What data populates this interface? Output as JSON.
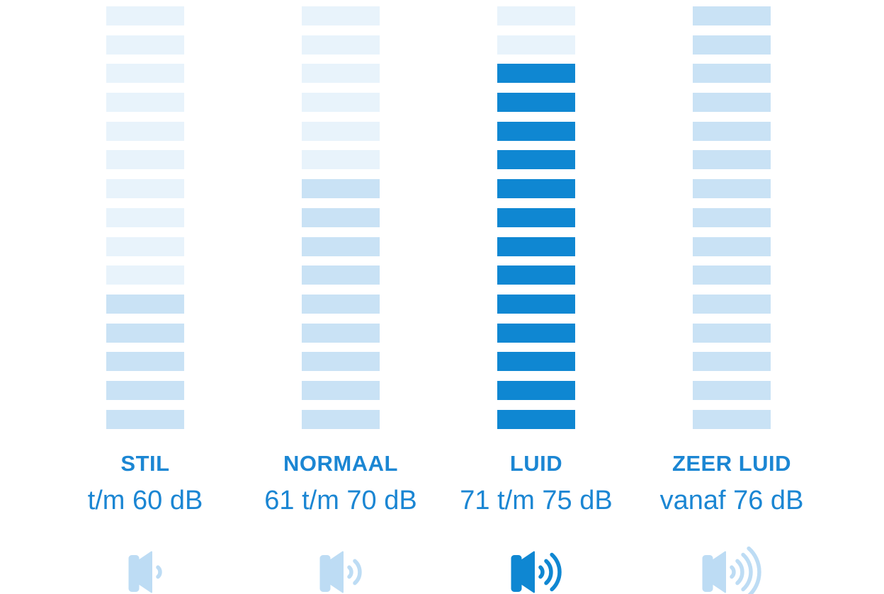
{
  "colors": {
    "background": "#ffffff",
    "bar_empty": "#e8f3fb",
    "bar_filled": "#c9e2f5",
    "bar_active": "#0f87d2",
    "text": "#1b86d3",
    "icon_light": "#bddcf4"
  },
  "columns": [
    {
      "title": "STIL",
      "range": "t/m 60 dB",
      "filled": 5,
      "active": false,
      "waves": 1
    },
    {
      "title": "NORMAAL",
      "range": "61 t/m 70 dB",
      "filled": 9,
      "active": false,
      "waves": 2
    },
    {
      "title": "LUID",
      "range": "71 t/m 75 dB",
      "filled": 13,
      "active": true,
      "waves": 3
    },
    {
      "title": "ZEER LUID",
      "range": "vanaf 76 dB",
      "filled": 15,
      "active": false,
      "waves": 4
    }
  ],
  "chart_data": {
    "type": "bar",
    "title": "",
    "categories": [
      "STIL",
      "NORMAAL",
      "LUID",
      "ZEER LUID"
    ],
    "category_labels": [
      "t/m 60 dB",
      "61 t/m 70 dB",
      "71 t/m 75 dB",
      "vanaf 76 dB"
    ],
    "series": [
      {
        "name": "filled-segments",
        "values": [
          5,
          9,
          13,
          15
        ]
      }
    ],
    "segments_total": 15,
    "highlighted_category": "LUID",
    "sound_wave_counts": [
      1,
      2,
      3,
      4
    ],
    "ylim": [
      0,
      15
    ],
    "grid": false,
    "legend": false
  }
}
